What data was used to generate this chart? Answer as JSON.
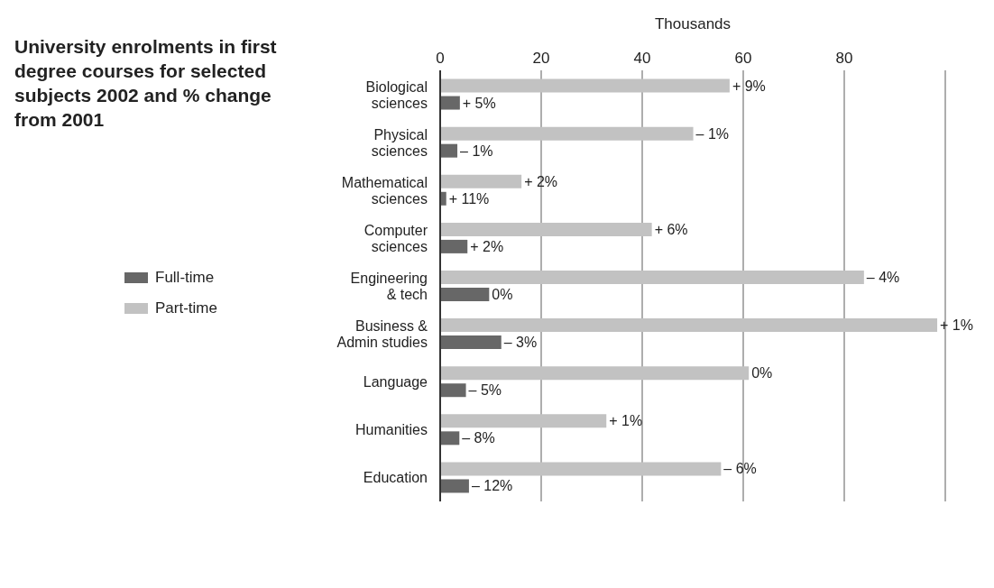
{
  "chart_data": {
    "type": "bar",
    "orientation": "horizontal",
    "title": "University enrolments in first degree courses for selected subjects 2002 and % change from 2001",
    "xlabel": "Thousands",
    "categories": [
      "Biological sciences",
      "Physical sciences",
      "Mathematical sciences",
      "Computer sciences",
      "Engineering & tech",
      "Business & Admin studies",
      "Language",
      "Humanities",
      "Education"
    ],
    "series": [
      {
        "name": "Full-time",
        "color": "#676767",
        "values": [
          3.9,
          3.4,
          1.2,
          5.4,
          9.7,
          12.1,
          5.1,
          3.8,
          5.7
        ]
      },
      {
        "name": "Part-time",
        "color": "#c2c2c2",
        "values": [
          57.3,
          50.1,
          16.1,
          41.9,
          83.9,
          98.4,
          61.1,
          32.9,
          55.6
        ]
      }
    ],
    "annotations": [
      {
        "text": "+ 9%",
        "x": 57.3,
        "y": "Biological sciences"
      },
      {
        "text": "+ 5%",
        "x": 3.9,
        "y": "Biological sciences"
      },
      {
        "text": "– 1%",
        "x": 50.1,
        "y": "Physical sciences"
      },
      {
        "text": "– 1%",
        "x": 3.4,
        "y": "Physical sciences"
      },
      {
        "text": "+ 2%",
        "x": 16.1,
        "y": "Mathematical sciences"
      },
      {
        "text": "+ 11%",
        "x": 1.2,
        "y": "Mathematical sciences"
      },
      {
        "text": "+ 6%",
        "x": 41.9,
        "y": "Computer sciences"
      },
      {
        "text": "+ 2%",
        "x": 5.4,
        "y": "Computer sciences"
      },
      {
        "text": "– 4%",
        "x": 83.9,
        "y": "Engineering & tech"
      },
      {
        "text": "0%",
        "x": 9.7,
        "y": "Engineering & tech"
      },
      {
        "text": "+ 1%",
        "x": 98.4,
        "y": "Business & Admin studies"
      },
      {
        "text": "– 3%",
        "x": 12.1,
        "y": "Business & Admin studies"
      },
      {
        "text": "0%",
        "x": 61.1,
        "y": "Language"
      },
      {
        "text": "– 5%",
        "x": 5.1,
        "y": "Language"
      },
      {
        "text": "+ 1%",
        "x": 32.9,
        "y": "Humanities"
      },
      {
        "text": "– 8%",
        "x": 3.8,
        "y": "Humanities"
      },
      {
        "text": "– 6%",
        "x": 55.6,
        "y": "Education"
      },
      {
        "text": "– 12%",
        "x": 5.7,
        "y": "Education"
      }
    ],
    "xlim": [
      0,
      100
    ],
    "xticks": [
      0,
      20,
      40,
      60,
      80
    ],
    "grid": "x",
    "legend": "left"
  }
}
